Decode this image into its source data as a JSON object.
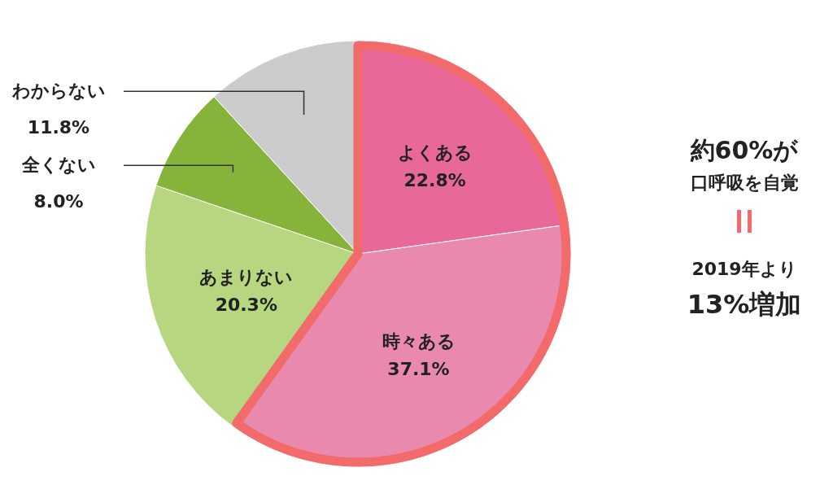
{
  "chart_data": {
    "type": "pie",
    "categories": [
      "よくある",
      "時々ある",
      "あまりない",
      "全くない",
      "わからない"
    ],
    "values": [
      22.8,
      37.1,
      20.3,
      8.0,
      11.8
    ],
    "value_labels": [
      "22.8%",
      "37.1%",
      "20.3%",
      "8.0%",
      "11.8%"
    ],
    "colors": [
      "#e8689a",
      "#ea89ae",
      "#b7d680",
      "#86b43b",
      "#cccccc"
    ],
    "legend": false,
    "annotations": [
      "約60%が",
      "口呼吸を自覚",
      "2019年より",
      "13%増加"
    ]
  }
}
